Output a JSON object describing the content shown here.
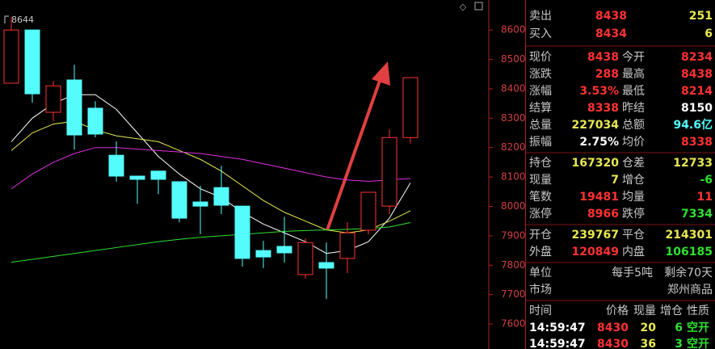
{
  "chart_data": {
    "type": "candlestick",
    "open": [
      8419,
      8600,
      8320,
      8430,
      8334,
      8174,
      8103,
      8120,
      8084,
      8015,
      8064,
      8001,
      7850,
      7864,
      7768,
      7809,
      7823,
      7919,
      8001,
      8234
    ],
    "high": [
      8644,
      8600,
      8427,
      8482,
      8358,
      8221,
      8103,
      8120,
      8084,
      8070,
      8138,
      8001,
      7883,
      7965,
      7891,
      7877,
      7946,
      8048,
      8262,
      8438
    ],
    "low": [
      8419,
      8353,
      8290,
      8193,
      8235,
      8084,
      8009,
      8042,
      7946,
      7905,
      7974,
      7795,
      7790,
      7809,
      7754,
      7685,
      7773,
      7905,
      7974,
      8214
    ],
    "close": [
      8600,
      8383,
      8410,
      8243,
      8246,
      8103,
      8092,
      8092,
      7960,
      8001,
      8004,
      7823,
      7828,
      7842,
      7877,
      7790,
      7910,
      8048,
      8234,
      8438
    ],
    "up_color": "#ff3232",
    "down_color": "#54fcfc",
    "lines": [
      {
        "color": "#ffffff",
        "values": [
          8220,
          8300,
          8350,
          8380,
          8380,
          8330,
          8250,
          8170,
          8110,
          8060,
          8030,
          7980,
          7940,
          7910,
          7880,
          7840,
          7850,
          7880,
          7960,
          8080
        ]
      },
      {
        "color": "#e8e850",
        "values": [
          8190,
          8250,
          8280,
          8290,
          8260,
          8240,
          8230,
          8220,
          8190,
          8160,
          8120,
          8070,
          8020,
          7980,
          7950,
          7920,
          7910,
          7920,
          7950,
          7985
        ]
      },
      {
        "color": "#e030e0",
        "values": [
          8060,
          8110,
          8150,
          8180,
          8200,
          8200,
          8195,
          8190,
          8185,
          8180,
          8170,
          8160,
          8145,
          8130,
          8115,
          8100,
          8090,
          8085,
          8090,
          8095
        ]
      },
      {
        "color": "#30e030",
        "values": [
          7810,
          7820,
          7830,
          7840,
          7850,
          7860,
          7870,
          7880,
          7888,
          7895,
          7900,
          7905,
          7910,
          7915,
          7918,
          7920,
          7922,
          7925,
          7930,
          7945
        ]
      }
    ],
    "max_label": "8644",
    "ylim": [
      7515,
      8702
    ],
    "yticks": [
      7600,
      7700,
      7800,
      7900,
      8000,
      8100,
      8200,
      8300,
      8400,
      8500,
      8600
    ]
  },
  "quote_panel": {
    "orders": [
      [
        "卖出",
        {
          "text": "8438",
          "color": "#ff3232"
        },
        {
          "text": "251",
          "color": "#e8e850"
        }
      ],
      [
        "买入",
        {
          "text": "8434",
          "color": "#ff3232"
        },
        {
          "text": "6",
          "color": "#e8e850"
        }
      ]
    ],
    "stats": [
      [
        "现价",
        {
          "text": "8438",
          "color": "#ff3232"
        },
        "今开",
        {
          "text": "8234",
          "color": "#ff3232"
        }
      ],
      [
        "涨跌",
        {
          "text": "288",
          "color": "#ff3232"
        },
        "最高",
        {
          "text": "8438",
          "color": "#ff3232"
        }
      ],
      [
        "涨幅",
        {
          "text": "3.53%",
          "color": "#ff3232"
        },
        "最低",
        {
          "text": "8214",
          "color": "#ff3232"
        }
      ],
      [
        "结算",
        {
          "text": "8338",
          "color": "#ff3232"
        },
        "昨结",
        {
          "text": "8150",
          "color": "#ffffff"
        }
      ],
      [
        "总量",
        {
          "text": "227034",
          "color": "#e8e850"
        },
        "总额",
        {
          "text": "94.6亿",
          "color": "#54fcfc"
        }
      ],
      [
        "振幅",
        {
          "text": "2.75%",
          "color": "#ffffff"
        },
        "均价",
        {
          "text": "8338",
          "color": "#ff3232"
        }
      ]
    ],
    "positions": [
      [
        "持仓",
        {
          "text": "167320",
          "color": "#e8e850"
        },
        "仓差",
        {
          "text": "12733",
          "color": "#e8e850"
        }
      ],
      [
        "现量",
        {
          "text": "7",
          "color": "#e8e850"
        },
        "增仓",
        {
          "text": "-6",
          "color": "#30e030"
        }
      ],
      [
        "笔数",
        {
          "text": "19481",
          "color": "#ff3232"
        },
        "均量",
        {
          "text": "11",
          "color": "#ff3232"
        }
      ],
      [
        "涨停",
        {
          "text": "8966",
          "color": "#ff3232"
        },
        "跌停",
        {
          "text": "7334",
          "color": "#30e030"
        }
      ]
    ],
    "flows": [
      [
        "开仓",
        {
          "text": "239767",
          "color": "#e8e850"
        },
        "平仓",
        {
          "text": "214301",
          "color": "#e8e850"
        }
      ],
      [
        "外盘",
        {
          "text": "120849",
          "color": "#ff3232"
        },
        "内盘",
        {
          "text": "106185",
          "color": "#30e030"
        }
      ]
    ],
    "info": [
      [
        "单位",
        "每手5吨",
        "剩余70天"
      ],
      [
        "市场",
        "郑州商品"
      ]
    ],
    "trades": {
      "header": [
        "时间",
        "价格",
        "现量",
        "增仓",
        "性质"
      ],
      "rows": [
        [
          {
            "text": "14:59:47",
            "color": "#ffffff"
          },
          {
            "text": "8430",
            "color": "#ff3232"
          },
          {
            "text": "20",
            "color": "#e8e850"
          },
          {
            "text": "6",
            "color": "#30e030"
          },
          {
            "text": "空开",
            "color": "#30e030"
          }
        ],
        [
          {
            "text": "14:59:47",
            "color": "#ffffff"
          },
          {
            "text": "8430",
            "color": "#ff3232"
          },
          {
            "text": "36",
            "color": "#e8e850"
          },
          {
            "text": "3",
            "color": "#30e030"
          },
          {
            "text": "空开",
            "color": "#30e030"
          }
        ]
      ]
    }
  }
}
